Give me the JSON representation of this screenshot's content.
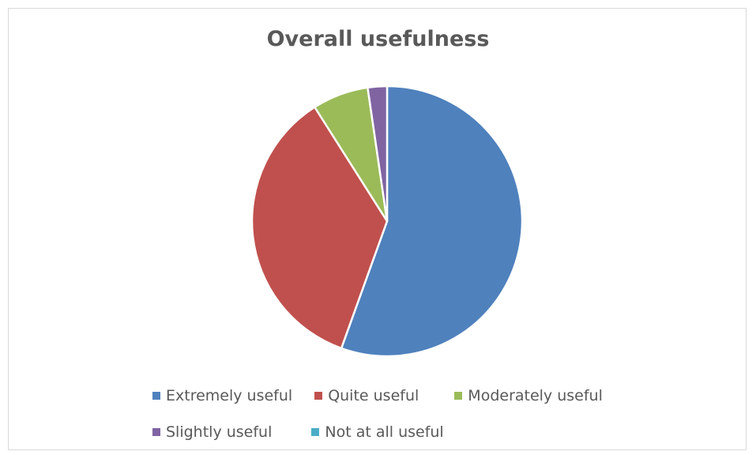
{
  "chart_data": {
    "type": "pie",
    "title": "Overall usefulness",
    "categories": [
      "Extremely useful",
      "Quite useful",
      "Moderately useful",
      "Slightly useful",
      "Not at all useful"
    ],
    "values": [
      55.5,
      35.5,
      6.7,
      2.3,
      0
    ],
    "colors": [
      "#4f81bd",
      "#c0504d",
      "#9bbb59",
      "#8064a2",
      "#4bacc6"
    ],
    "legend_position": "bottom",
    "start_angle": "top, clockwise"
  }
}
